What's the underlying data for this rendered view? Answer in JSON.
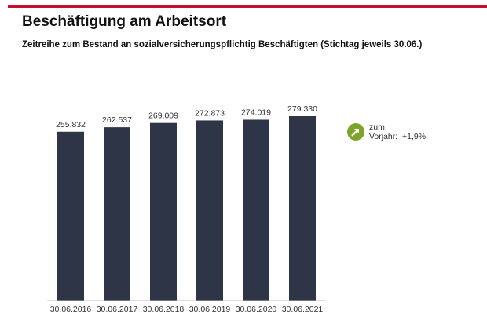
{
  "header": {
    "title": "Beschäftigung am Arbeitsort",
    "subtitle": "Zeitreihe zum Bestand an sozialversicherungspflichtig Beschäftigten (Stichtag jeweils 30.06.)"
  },
  "change": {
    "line1": "zum",
    "line2": "Vorjahr:",
    "value": "+1,9%",
    "icon": "arrow-up-right-icon",
    "color": "#7aa52a"
  },
  "chart_data": {
    "type": "bar",
    "categories": [
      "30.06.2016",
      "30.06.2017",
      "30.06.2018",
      "30.06.2019",
      "30.06.2020",
      "30.06.2021"
    ],
    "values": [
      255832,
      262537,
      269009,
      272873,
      274019,
      279330
    ],
    "labels": [
      "255.832",
      "262.537",
      "269.009",
      "272.873",
      "274.019",
      "279.330"
    ],
    "ylim": [
      0,
      300000
    ],
    "grid": false,
    "bar_color": "#2e3547"
  }
}
